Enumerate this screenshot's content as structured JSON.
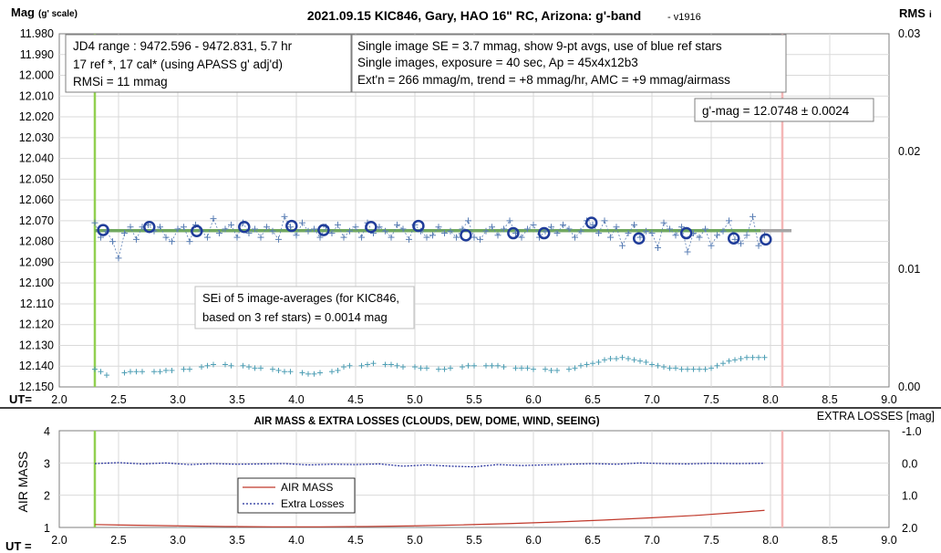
{
  "chart_data": [
    {
      "type": "scatter",
      "title": "2021.09.15 KIC846, Gary, HAO 16\" RC, Arizona: g'-band",
      "version": "- v1916",
      "ylabel": "Mag",
      "ylabel_sub": "(g' scale)",
      "y2label": "RMS",
      "y2label_sub": "i",
      "xlabel": "UT=",
      "xlim": [
        2.0,
        9.0
      ],
      "ylim": [
        12.15,
        11.98
      ],
      "y2lim": [
        0.0,
        0.03
      ],
      "x_ticks": [
        "2.0",
        "2.5",
        "3.0",
        "3.5",
        "4.0",
        "4.5",
        "5.0",
        "5.5",
        "6.0",
        "6.5",
        "7.0",
        "7.5",
        "8.0",
        "8.5",
        "9.0"
      ],
      "y_ticks": [
        "11.980",
        "11.990",
        "12.000",
        "12.010",
        "12.020",
        "12.030",
        "12.040",
        "12.050",
        "12.060",
        "12.070",
        "12.080",
        "12.090",
        "12.100",
        "12.110",
        "12.120",
        "12.130",
        "12.140",
        "12.150"
      ],
      "y2_ticks": [
        "0.00",
        "0.01",
        "0.02",
        "0.03"
      ],
      "vertical_lines": [
        {
          "x": 2.3,
          "color": "#92d050"
        },
        {
          "x": 8.1,
          "color": "#f4b6b6"
        }
      ],
      "mean_line": {
        "y": 12.0748,
        "x_range": [
          2.3,
          8.1
        ]
      },
      "annotations": {
        "box1": [
          "JD4 range : 9472.596 - 9472.831,  5.7  hr",
          "17 ref *, 17 cal* (using APASS g' adj'd)",
          "RMSi = 11 mmag"
        ],
        "box2": [
          "Single image SE = 3.7 mmag, show  9-pt avgs, use of blue ref stars",
          "Single images, exposure = 40 sec, Ap = 45x4x12b3",
          "Ext'n = 266 mmag/m, trend = +8 mmag/hr, AMC = +9 mmag/airmass"
        ],
        "mag_label": "g'-mag = 12.0748 ± 0.0024",
        "sei": [
          "SEi of 5 image-averages (for KIC846,",
          "based on 3 ref stars) = 0.0014 mag"
        ]
      },
      "series": [
        {
          "name": "9-pt averages",
          "marker": "circle",
          "color": "#1f3c99",
          "x": [
            2.37,
            2.76,
            3.16,
            3.56,
            3.96,
            4.23,
            4.63,
            5.03,
            5.43,
            5.83,
            6.09,
            6.49,
            6.89,
            7.29,
            7.69,
            7.96
          ],
          "y": [
            12.0745,
            12.073,
            12.075,
            12.073,
            12.0725,
            12.0745,
            12.073,
            12.0725,
            12.077,
            12.076,
            12.076,
            12.071,
            12.0785,
            12.076,
            12.0785,
            12.079
          ]
        },
        {
          "name": "single images",
          "marker": "plus",
          "color": "#5b7fb5",
          "x": [
            2.3,
            2.35,
            2.4,
            2.45,
            2.5,
            2.55,
            2.6,
            2.65,
            2.7,
            2.75,
            2.8,
            2.85,
            2.9,
            2.95,
            3.0,
            3.05,
            3.1,
            3.15,
            3.2,
            3.25,
            3.3,
            3.35,
            3.4,
            3.45,
            3.5,
            3.55,
            3.6,
            3.65,
            3.7,
            3.75,
            3.8,
            3.85,
            3.9,
            3.95,
            4.0,
            4.05,
            4.1,
            4.15,
            4.2,
            4.25,
            4.3,
            4.35,
            4.4,
            4.45,
            4.5,
            4.55,
            4.6,
            4.65,
            4.7,
            4.75,
            4.8,
            4.85,
            4.9,
            4.95,
            5.0,
            5.05,
            5.1,
            5.15,
            5.2,
            5.25,
            5.3,
            5.35,
            5.4,
            5.45,
            5.5,
            5.55,
            5.6,
            5.65,
            5.7,
            5.75,
            5.8,
            5.85,
            5.9,
            5.95,
            6.0,
            6.05,
            6.1,
            6.15,
            6.2,
            6.25,
            6.3,
            6.35,
            6.4,
            6.45,
            6.5,
            6.55,
            6.6,
            6.65,
            6.7,
            6.75,
            6.8,
            6.85,
            6.9,
            6.95,
            7.0,
            7.05,
            7.1,
            7.15,
            7.2,
            7.25,
            7.3,
            7.35,
            7.4,
            7.45,
            7.5,
            7.55,
            7.6,
            7.65,
            7.7,
            7.75,
            7.8,
            7.85,
            7.9,
            7.95
          ],
          "y": [
            12.071,
            12.078,
            12.075,
            12.08,
            12.088,
            12.076,
            12.073,
            12.079,
            12.073,
            12.072,
            12.075,
            12.073,
            12.078,
            12.08,
            12.074,
            12.073,
            12.08,
            12.072,
            12.075,
            12.078,
            12.069,
            12.076,
            12.074,
            12.072,
            12.078,
            12.071,
            12.076,
            12.074,
            12.078,
            12.073,
            12.075,
            12.079,
            12.068,
            12.073,
            12.077,
            12.071,
            12.075,
            12.074,
            12.078,
            12.073,
            12.076,
            12.072,
            12.078,
            12.075,
            12.073,
            12.078,
            12.071,
            12.076,
            12.073,
            12.075,
            12.078,
            12.072,
            12.074,
            12.079,
            12.072,
            12.075,
            12.078,
            12.077,
            12.073,
            12.076,
            12.075,
            12.078,
            12.074,
            12.07,
            12.078,
            12.079,
            12.075,
            12.073,
            12.077,
            12.074,
            12.07,
            12.076,
            12.078,
            12.074,
            12.072,
            12.078,
            12.075,
            12.073,
            12.076,
            12.072,
            12.074,
            12.078,
            12.075,
            12.07,
            12.072,
            12.076,
            12.07,
            12.078,
            12.073,
            12.082,
            12.076,
            12.072,
            12.078,
            12.075,
            12.076,
            12.083,
            12.071,
            12.074,
            12.077,
            12.073,
            12.085,
            12.076,
            12.078,
            12.074,
            12.082,
            12.077,
            12.075,
            12.07,
            12.079,
            12.081,
            12.077,
            12.068,
            12.082,
            12.077
          ]
        },
        {
          "name": "RMSi",
          "axis": "right",
          "marker": "plus",
          "color": "#4f9fb5",
          "x": [
            2.3,
            2.35,
            2.4,
            2.55,
            2.6,
            2.65,
            2.7,
            2.8,
            2.85,
            2.9,
            2.95,
            3.05,
            3.1,
            3.2,
            3.25,
            3.3,
            3.4,
            3.45,
            3.55,
            3.6,
            3.65,
            3.7,
            3.8,
            3.85,
            3.9,
            3.95,
            4.05,
            4.1,
            4.15,
            4.2,
            4.3,
            4.35,
            4.4,
            4.45,
            4.55,
            4.6,
            4.65,
            4.75,
            4.8,
            4.85,
            4.9,
            5.0,
            5.05,
            5.1,
            5.2,
            5.25,
            5.3,
            5.4,
            5.45,
            5.5,
            5.6,
            5.65,
            5.7,
            5.75,
            5.85,
            5.9,
            5.95,
            6.0,
            6.1,
            6.15,
            6.2,
            6.3,
            6.35,
            6.4,
            6.45,
            6.5,
            6.55,
            6.6,
            6.65,
            6.7,
            6.75,
            6.8,
            6.85,
            6.9,
            6.95,
            7.0,
            7.05,
            7.1,
            7.15,
            7.2,
            7.25,
            7.3,
            7.35,
            7.4,
            7.45,
            7.5,
            7.55,
            7.6,
            7.65,
            7.7,
            7.75,
            7.8,
            7.85,
            7.9,
            7.95
          ],
          "y": [
            0.0015,
            0.0013,
            0.001,
            0.0012,
            0.0013,
            0.0013,
            0.0013,
            0.0013,
            0.0013,
            0.0014,
            0.0014,
            0.0015,
            0.0015,
            0.0017,
            0.0018,
            0.0019,
            0.0019,
            0.0018,
            0.0018,
            0.0017,
            0.0016,
            0.0016,
            0.0015,
            0.0014,
            0.0013,
            0.0013,
            0.0012,
            0.0011,
            0.0011,
            0.0012,
            0.0013,
            0.0014,
            0.0017,
            0.0018,
            0.0018,
            0.0019,
            0.002,
            0.0019,
            0.0019,
            0.0018,
            0.0017,
            0.0017,
            0.0016,
            0.0016,
            0.0015,
            0.0015,
            0.0016,
            0.0017,
            0.0018,
            0.0018,
            0.0018,
            0.0018,
            0.0018,
            0.0017,
            0.0016,
            0.0016,
            0.0016,
            0.0015,
            0.0015,
            0.0014,
            0.0014,
            0.0015,
            0.0016,
            0.0018,
            0.0019,
            0.002,
            0.0021,
            0.0023,
            0.0024,
            0.0024,
            0.0025,
            0.0024,
            0.0023,
            0.0022,
            0.0021,
            0.0019,
            0.0018,
            0.0017,
            0.0016,
            0.0016,
            0.0015,
            0.0015,
            0.0015,
            0.0015,
            0.0015,
            0.0016,
            0.0018,
            0.002,
            0.0022,
            0.0023,
            0.0024,
            0.0025,
            0.0025,
            0.0025,
            0.0025
          ]
        }
      ]
    },
    {
      "type": "line",
      "title": "AIR MASS & EXTRA LOSSES (CLOUDS, DEW, DOME, WIND, SEEING)",
      "ylabel": "AIR MASS",
      "y2label": "EXTRA LOSSES [mag]",
      "xlabel": "UT =",
      "xlim": [
        2.0,
        9.0
      ],
      "ylim": [
        1,
        4
      ],
      "y2lim": [
        2.0,
        -1.0
      ],
      "x_ticks": [
        "2.0",
        "2.5",
        "3.0",
        "3.5",
        "4.0",
        "4.5",
        "5.0",
        "5.5",
        "6.0",
        "6.5",
        "7.0",
        "7.5",
        "8.0",
        "8.5",
        "9.0"
      ],
      "y_ticks": [
        "1",
        "2",
        "3",
        "4"
      ],
      "y2_ticks": [
        "2.0",
        "1.0",
        "0.0",
        "-1.0"
      ],
      "vertical_lines": [
        {
          "x": 2.3,
          "color": "#92d050"
        },
        {
          "x": 8.1,
          "color": "#f4b6b6"
        }
      ],
      "legend": [
        "AIR MASS",
        "Extra Losses"
      ],
      "series": [
        {
          "name": "AIR MASS",
          "color": "#c0392b",
          "x": [
            2.3,
            2.6,
            3.0,
            3.4,
            3.8,
            4.2,
            4.6,
            5.0,
            5.4,
            5.8,
            6.2,
            6.6,
            7.0,
            7.4,
            7.7,
            7.95
          ],
          "y": [
            1.09,
            1.07,
            1.05,
            1.03,
            1.02,
            1.02,
            1.03,
            1.05,
            1.08,
            1.12,
            1.17,
            1.23,
            1.3,
            1.38,
            1.46,
            1.53
          ]
        },
        {
          "name": "Extra Losses",
          "axis": "right",
          "color": "#1f2a99",
          "x": [
            2.3,
            2.5,
            2.7,
            2.9,
            3.1,
            3.3,
            3.5,
            3.7,
            3.9,
            4.1,
            4.3,
            4.5,
            4.7,
            4.9,
            5.1,
            5.3,
            5.5,
            5.7,
            5.9,
            6.1,
            6.3,
            6.5,
            6.7,
            6.9,
            7.1,
            7.3,
            7.5,
            7.7,
            7.95
          ],
          "y": [
            0.02,
            -0.01,
            0.03,
            0.0,
            0.05,
            0.02,
            0.04,
            0.03,
            0.02,
            0.06,
            0.04,
            0.05,
            0.03,
            0.1,
            0.06,
            0.1,
            0.12,
            0.05,
            0.08,
            0.06,
            0.04,
            0.02,
            0.04,
            0.0,
            0.02,
            0.03,
            0.01,
            0.02,
            0.01
          ]
        }
      ]
    }
  ]
}
